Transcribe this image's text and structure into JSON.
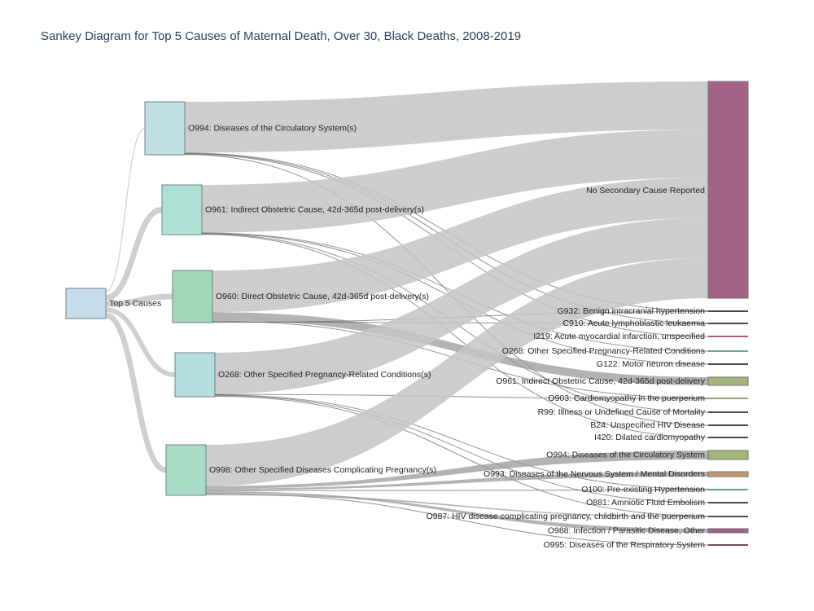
{
  "title": "Sankey Diagram for Top 5 Causes of Maternal Death, Over 30, Black Deaths, 2008-2019",
  "diagram": {
    "type": "sankey",
    "source": {
      "label": "Top 5 Causes",
      "color": "#c6dde9"
    },
    "primaries": [
      {
        "id": "o994",
        "label": "O994: Diseases of the Circulatory System(s)",
        "color": "#bfdfe4",
        "value": 100
      },
      {
        "id": "o961",
        "label": "O961: Indirect Obstetric Cause, 42d-365d post-delivery(s)",
        "color": "#aee0d4",
        "value": 100
      },
      {
        "id": "o960",
        "label": "O960: Direct Obstetric Cause, 42d-365d post-delivery(s)",
        "color": "#a3d5b7",
        "value": 100
      },
      {
        "id": "o268",
        "label": "O268: Other Specified Pregnancy-Related Conditions(s)",
        "color": "#b5dde0",
        "value": 85
      },
      {
        "id": "o998",
        "label": "O998: Other Specified Diseases Complicating Pregnancy(s)",
        "color": "#a9dcc6",
        "value": 98
      }
    ],
    "secondaries": [
      {
        "id": "none",
        "label": "No Secondary Cause Reported",
        "color": "#a36389"
      },
      {
        "id": "g932",
        "label": "G932: Benign intracranial hypertension",
        "color": "#4a4a4a"
      },
      {
        "id": "c910",
        "label": "C910: Acute lymphoblastic leukaemia",
        "color": "#4a4a4a"
      },
      {
        "id": "i219",
        "label": "I219: Acute myocardial infarction, unspecified",
        "color": "#b05a70"
      },
      {
        "id": "o268s",
        "label": "O268: Other Specified Pregnancy-Related Conditions",
        "color": "#6aa39a"
      },
      {
        "id": "g122",
        "label": "G122: Motor neuron disease",
        "color": "#4a4a4a"
      },
      {
        "id": "o961s",
        "label": "O961: Indirect Obstetric Cause, 42d-365d post-delivery",
        "color": "#a5b47a"
      },
      {
        "id": "o903",
        "label": "O903: Cardiomyopathy in the puerperium",
        "color": "#8fa66b"
      },
      {
        "id": "r99",
        "label": "R99: Illness or Undefined Cause of Mortality",
        "color": "#4a4a4a"
      },
      {
        "id": "b24",
        "label": "B24: Unspecified HIV Disease",
        "color": "#4a4a4a"
      },
      {
        "id": "i420",
        "label": "I420: Dilated cardiomyopathy",
        "color": "#4a4a4a"
      },
      {
        "id": "o994s",
        "label": "O994: Diseases of the Circulatory System",
        "color": "#a2b677"
      },
      {
        "id": "o993s",
        "label": "O993: Diseases of the Nervous System / Mental Disorders",
        "color": "#c49a6b"
      },
      {
        "id": "o100",
        "label": "O100: Pre-existing Hypertension",
        "color": "#6b9a97"
      },
      {
        "id": "o881",
        "label": "O881: Amniotic Fluid Embolism",
        "color": "#4a4a4a"
      },
      {
        "id": "o987",
        "label": "O987: HIV disease complicating pregnancy, childbirth and the puerperium",
        "color": "#4a4a4a"
      },
      {
        "id": "o988",
        "label": "O988: Infection / Parasitic Disease, Other",
        "color": "#a95c92"
      },
      {
        "id": "o995",
        "label": "O995: Diseases of the Respiratory System",
        "color": "#7a4a5e"
      }
    ],
    "links": [
      {
        "source": "o994",
        "target": "none",
        "value": 96
      },
      {
        "source": "o994",
        "target": "g932",
        "value": 1
      },
      {
        "source": "o994",
        "target": "c910",
        "value": 1
      },
      {
        "source": "o994",
        "target": "i219",
        "value": 1
      },
      {
        "source": "o994",
        "target": "b24",
        "value": 1
      },
      {
        "source": "o961",
        "target": "none",
        "value": 96
      },
      {
        "source": "o961",
        "target": "o268s",
        "value": 1
      },
      {
        "source": "o961",
        "target": "g122",
        "value": 1
      },
      {
        "source": "o961",
        "target": "r99",
        "value": 1
      },
      {
        "source": "o961",
        "target": "i420",
        "value": 1
      },
      {
        "source": "o960",
        "target": "none",
        "value": 80
      },
      {
        "source": "o960",
        "target": "o961s",
        "value": 16
      },
      {
        "source": "o960",
        "target": "o903",
        "value": 2
      },
      {
        "source": "o960",
        "target": "c910",
        "value": 1
      },
      {
        "source": "o960",
        "target": "g932",
        "value": 1
      },
      {
        "source": "o268",
        "target": "none",
        "value": 80
      },
      {
        "source": "o268",
        "target": "o903",
        "value": 1
      },
      {
        "source": "o268",
        "target": "o100",
        "value": 1
      },
      {
        "source": "o268",
        "target": "o881",
        "value": 1
      },
      {
        "source": "o268",
        "target": "o987",
        "value": 2
      },
      {
        "source": "o998",
        "target": "none",
        "value": 80
      },
      {
        "source": "o998",
        "target": "o994s",
        "value": 5
      },
      {
        "source": "o998",
        "target": "o993s",
        "value": 3
      },
      {
        "source": "o998",
        "target": "o100",
        "value": 2
      },
      {
        "source": "o998",
        "target": "o988",
        "value": 3
      },
      {
        "source": "o998",
        "target": "o995",
        "value": 2
      },
      {
        "source": "o998",
        "target": "o987",
        "value": 3
      }
    ]
  }
}
